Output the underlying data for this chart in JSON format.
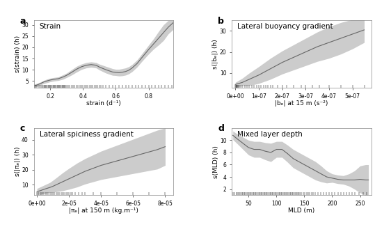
{
  "panel_a": {
    "label": "a",
    "title": "Strain",
    "xlabel": "strain (d⁻¹)",
    "ylabel": "s(strain) (h)",
    "xlim": [
      0.1,
      0.95
    ],
    "ylim": [
      2,
      32
    ],
    "yticks": [
      5,
      10,
      15,
      20,
      25,
      30
    ],
    "xticks": [
      0.2,
      0.4,
      0.6,
      0.8
    ],
    "curve_x": [
      0.1,
      0.12,
      0.14,
      0.16,
      0.18,
      0.2,
      0.22,
      0.25,
      0.28,
      0.3,
      0.33,
      0.36,
      0.39,
      0.42,
      0.45,
      0.48,
      0.5,
      0.52,
      0.54,
      0.56,
      0.58,
      0.6,
      0.62,
      0.64,
      0.66,
      0.68,
      0.7,
      0.73,
      0.76,
      0.8,
      0.83,
      0.86,
      0.89,
      0.92,
      0.95
    ],
    "curve_y": [
      2.8,
      3.2,
      3.8,
      4.5,
      5.0,
      5.4,
      5.7,
      6.0,
      6.8,
      7.5,
      8.8,
      10.2,
      11.3,
      12.0,
      12.3,
      12.0,
      11.2,
      10.6,
      10.0,
      9.5,
      9.0,
      8.8,
      8.7,
      8.9,
      9.2,
      9.8,
      10.8,
      12.8,
      15.5,
      19.0,
      21.5,
      24.0,
      26.5,
      29.0,
      31.0
    ],
    "ci_upper": [
      3.5,
      3.9,
      4.5,
      5.2,
      5.8,
      6.2,
      6.5,
      6.8,
      7.8,
      8.5,
      10.0,
      11.5,
      12.5,
      13.2,
      13.5,
      13.2,
      12.5,
      12.0,
      11.5,
      11.0,
      10.5,
      10.2,
      10.2,
      10.5,
      10.8,
      11.4,
      12.4,
      14.4,
      17.2,
      21.0,
      23.8,
      27.0,
      30.0,
      32.0,
      32.0
    ],
    "ci_lower": [
      2.1,
      2.5,
      3.1,
      3.8,
      4.2,
      4.6,
      4.9,
      5.2,
      5.8,
      6.5,
      7.6,
      8.9,
      10.1,
      10.8,
      11.1,
      10.8,
      9.9,
      9.2,
      8.5,
      8.0,
      7.5,
      7.4,
      7.2,
      7.3,
      7.6,
      8.2,
      9.2,
      11.2,
      13.8,
      17.0,
      19.2,
      21.0,
      23.0,
      26.0,
      28.0
    ],
    "rug_x": [
      0.11,
      0.12,
      0.13,
      0.14,
      0.15,
      0.155,
      0.16,
      0.165,
      0.17,
      0.175,
      0.18,
      0.185,
      0.19,
      0.195,
      0.2,
      0.205,
      0.21,
      0.215,
      0.22,
      0.225,
      0.23,
      0.235,
      0.24,
      0.245,
      0.25,
      0.255,
      0.26,
      0.265,
      0.27,
      0.275,
      0.28,
      0.285,
      0.29,
      0.295,
      0.3,
      0.31,
      0.32,
      0.33,
      0.34,
      0.35,
      0.36,
      0.37,
      0.38,
      0.39,
      0.4,
      0.41,
      0.42,
      0.43,
      0.44,
      0.45,
      0.46,
      0.47,
      0.48,
      0.49,
      0.5,
      0.51,
      0.52,
      0.54,
      0.56,
      0.58,
      0.6,
      0.62,
      0.64,
      0.66,
      0.68,
      0.7,
      0.72,
      0.74,
      0.76,
      0.78,
      0.8,
      0.82,
      0.84,
      0.86,
      0.88,
      0.9,
      0.92,
      0.94
    ]
  },
  "panel_b": {
    "label": "b",
    "title": "Lateral buoyancy gradient",
    "xlabel": "|bₑ| at 15 m (s⁻²)",
    "ylabel": "s(|bₑ|) (h)",
    "xlim": [
      -1.5e-08,
      5.8e-07
    ],
    "ylim": [
      3,
      35
    ],
    "yticks": [
      10,
      20,
      30
    ],
    "xticks": [
      0,
      1e-07,
      2e-07,
      3e-07,
      4e-07,
      5e-07
    ],
    "xtick_labels": [
      "0e+00",
      "1e-07",
      "2e-07",
      "3e-07",
      "4e-07",
      "5e-07"
    ],
    "curve_x": [
      0,
      3e-08,
      6e-08,
      1e-07,
      1.5e-07,
      2e-07,
      2.5e-07,
      3e-07,
      3.5e-07,
      4e-07,
      4.5e-07,
      5e-07,
      5.5e-07
    ],
    "curve_y": [
      4.5,
      5.5,
      7.0,
      9.0,
      12.0,
      15.0,
      17.5,
      20.0,
      22.5,
      24.5,
      26.5,
      28.5,
      30.5
    ],
    "ci_upper": [
      5.5,
      7.5,
      10.0,
      13.0,
      17.0,
      20.5,
      23.5,
      26.5,
      29.5,
      32.0,
      34.0,
      35.5,
      36.5
    ],
    "ci_lower": [
      3.5,
      3.8,
      4.0,
      5.0,
      7.0,
      9.5,
      11.5,
      13.5,
      15.5,
      17.0,
      19.0,
      21.5,
      24.5
    ],
    "rug_x": [
      0,
      2e-09,
      4e-09,
      6e-09,
      8e-09,
      1e-08,
      1.5e-08,
      2e-08,
      3e-08,
      4e-08,
      5e-08,
      6e-08,
      7e-08,
      8e-08,
      9e-08,
      1e-07,
      1.1e-07,
      1.2e-07,
      1.3e-07,
      1.4e-07,
      1.5e-07,
      1.6e-07,
      1.8e-07,
      2e-07,
      2.2e-07,
      2.5e-07,
      2.8e-07,
      3e-07,
      3.3e-07,
      3.6e-07,
      4e-07,
      4.5e-07,
      5e-07,
      5.5e-07
    ]
  },
  "panel_c": {
    "label": "c",
    "title": "Lateral spiciness gradient",
    "xlabel": "|πₑ| at 150 m (kg.m⁻¹)",
    "ylabel": "s(|πₑ|) (h)",
    "xlim": [
      -2e-06,
      8.5e-05
    ],
    "ylim": [
      3,
      48
    ],
    "yticks": [
      10,
      20,
      30,
      40
    ],
    "xticks": [
      0,
      2e-05,
      4e-05,
      6e-05,
      8e-05
    ],
    "xtick_labels": [
      "0e+00",
      "2e-05",
      "4e-05",
      "6e-05",
      "8e-05"
    ],
    "curve_x": [
      0,
      2e-06,
      4e-06,
      6e-06,
      8e-06,
      1e-05,
      1.3e-05,
      1.6e-05,
      2e-05,
      2.5e-05,
      3e-05,
      3.5e-05,
      4e-05,
      4.5e-05,
      5e-05,
      5.5e-05,
      6e-05,
      6.5e-05,
      7e-05,
      7.5e-05,
      8e-05
    ],
    "curve_y": [
      5.5,
      6.0,
      6.8,
      7.5,
      8.2,
      9.0,
      10.5,
      12.0,
      14.0,
      16.5,
      19.0,
      21.0,
      23.0,
      24.5,
      26.0,
      27.5,
      29.0,
      30.5,
      32.0,
      33.5,
      35.5
    ],
    "ci_upper": [
      7.5,
      8.5,
      9.5,
      10.5,
      11.5,
      13.0,
      15.5,
      18.0,
      21.0,
      24.5,
      27.5,
      30.0,
      32.5,
      34.5,
      36.5,
      38.5,
      40.5,
      42.5,
      44.5,
      46.5,
      48.0
    ],
    "ci_lower": [
      3.5,
      3.5,
      4.1,
      4.5,
      4.9,
      5.0,
      5.5,
      6.0,
      7.0,
      8.5,
      10.5,
      12.0,
      13.5,
      14.5,
      15.5,
      16.5,
      17.5,
      18.5,
      19.5,
      20.5,
      23.0
    ],
    "rug_x": [
      0,
      1e-06,
      2e-06,
      3e-06,
      4e-06,
      5e-06,
      6e-06,
      7e-06,
      8e-06,
      9e-06,
      1e-05,
      1.1e-05,
      1.2e-05,
      1.3e-05,
      1.4e-05,
      1.5e-05,
      1.6e-05,
      1.7e-05,
      1.8e-05,
      1.9e-05,
      2e-05,
      2.1e-05,
      2.2e-05,
      2.4e-05,
      2.6e-05,
      2.8e-05,
      3e-05,
      3.5e-05,
      4e-05,
      5e-05,
      6e-05,
      7e-05,
      8e-05
    ]
  },
  "panel_d": {
    "label": "d",
    "title": "Mixed layer depth",
    "xlabel": "MLD (m)",
    "ylabel": "s(MLD) (h)",
    "xlim": [
      20,
      270
    ],
    "ylim": [
      1,
      12
    ],
    "yticks": [
      2,
      4,
      6,
      8,
      10
    ],
    "xticks": [
      50,
      100,
      150,
      200,
      250
    ],
    "curve_x": [
      22,
      30,
      40,
      50,
      60,
      70,
      80,
      90,
      100,
      110,
      120,
      130,
      140,
      150,
      160,
      170,
      180,
      190,
      200,
      210,
      220,
      230,
      240,
      250,
      260,
      265
    ],
    "curve_y": [
      10.8,
      10.2,
      9.5,
      8.8,
      8.5,
      8.5,
      8.2,
      8.0,
      8.5,
      8.5,
      7.8,
      7.0,
      6.5,
      6.0,
      5.5,
      5.0,
      4.5,
      4.0,
      3.8,
      3.6,
      3.5,
      3.5,
      3.5,
      3.6,
      3.5,
      3.5
    ],
    "ci_upper": [
      11.5,
      11.0,
      10.5,
      10.0,
      9.8,
      9.8,
      9.6,
      9.5,
      9.8,
      9.8,
      9.2,
      8.5,
      8.0,
      7.5,
      7.0,
      6.5,
      5.8,
      5.0,
      4.5,
      4.3,
      4.2,
      4.5,
      5.0,
      5.8,
      6.0,
      6.0
    ],
    "ci_lower": [
      10.1,
      9.4,
      8.5,
      7.6,
      7.2,
      7.2,
      6.8,
      6.5,
      7.2,
      7.2,
      6.4,
      5.5,
      5.0,
      4.5,
      4.0,
      3.5,
      3.2,
      3.0,
      3.1,
      2.9,
      2.8,
      2.5,
      2.0,
      1.4,
      1.0,
      1.1
    ],
    "rug_x": [
      22,
      25,
      28,
      30,
      32,
      34,
      36,
      38,
      40,
      42,
      44,
      46,
      48,
      50,
      52,
      54,
      56,
      58,
      60,
      62,
      64,
      66,
      68,
      70,
      72,
      74,
      76,
      78,
      80,
      82,
      84,
      86,
      88,
      90,
      92,
      94,
      96,
      98,
      100,
      102,
      104,
      106,
      108,
      110,
      112,
      114,
      116,
      118,
      120,
      122,
      124,
      126,
      128,
      130,
      132,
      134,
      136,
      138,
      140,
      142,
      145,
      148,
      151,
      154,
      157,
      160,
      163,
      166,
      170,
      175,
      180,
      185,
      190,
      195,
      200,
      205,
      210,
      215,
      220,
      225,
      230,
      235,
      240,
      248,
      255,
      262
    ]
  },
  "line_color": "#666666",
  "ci_color": "#bbbbbb",
  "rug_color": "#000000",
  "bg_color": "#ffffff",
  "panel_bg": "#ffffff",
  "fontsize_title": 7.5,
  "fontsize_label": 6.5,
  "fontsize_tick": 5.5,
  "fontsize_panel_label": 9
}
